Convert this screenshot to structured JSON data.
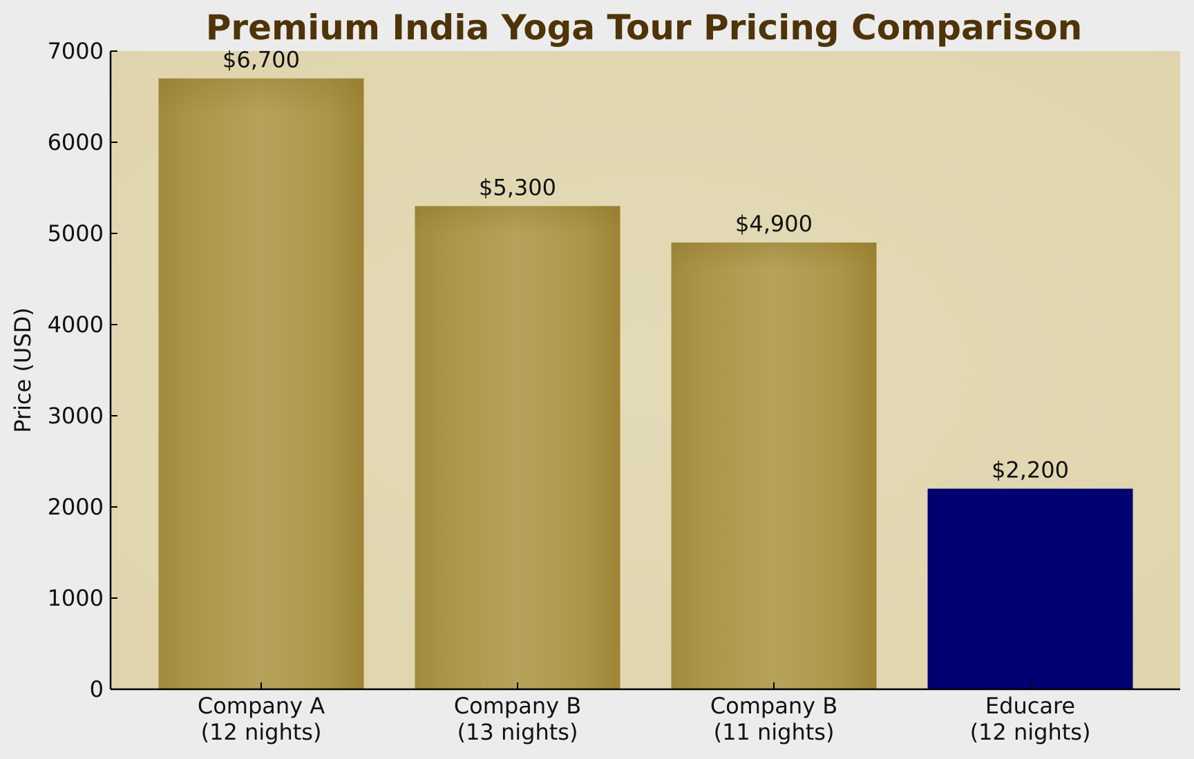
{
  "chart_data": {
    "type": "bar",
    "title": "Premium India Yoga Tour Pricing Comparison",
    "xlabel": "",
    "ylabel": "Price (USD)",
    "ylim": [
      0,
      7000
    ],
    "yticks": [
      "0",
      "1000",
      "2000",
      "3000",
      "4000",
      "5000",
      "6000",
      "7000"
    ],
    "categories": [
      [
        "Company A",
        "(12 nights)"
      ],
      [
        "Company B",
        "(13 nights)"
      ],
      [
        "Company B",
        "(11 nights)"
      ],
      [
        "Educare",
        "(12 nights)"
      ]
    ],
    "values": [
      6700,
      5300,
      4900,
      2200
    ],
    "data_labels": [
      "$6,700",
      "$5,300",
      "$4,900",
      "$2,200"
    ],
    "colors": {
      "page_background": "#ececec",
      "plot_background": "#e1d6b0",
      "bar_gold": "#b09a50",
      "bar_gold_dark": "#9c8536",
      "bar_highlight": "#000072",
      "title": "#4f3408"
    },
    "grid": false,
    "legend": "none"
  }
}
